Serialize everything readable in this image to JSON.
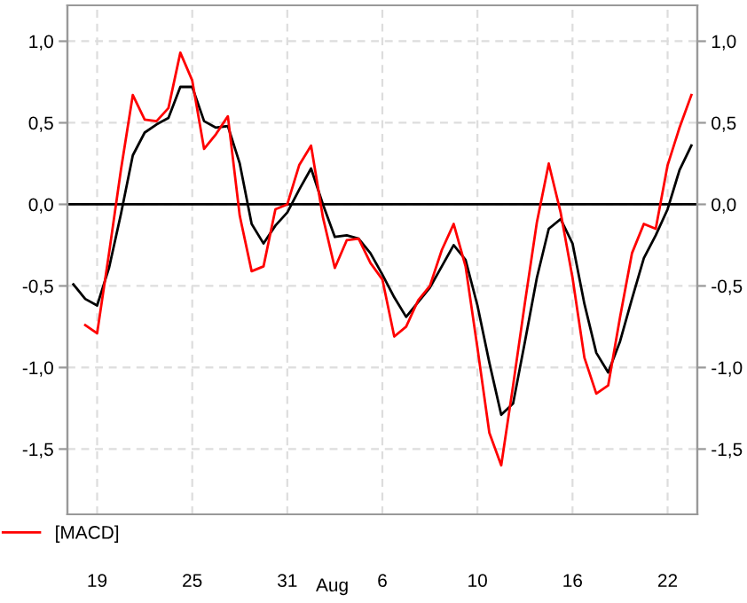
{
  "chart_data": {
    "type": "line",
    "xlabel": "Aug",
    "categories": [
      null,
      null,
      "19",
      null,
      null,
      null,
      null,
      null,
      null,
      null,
      "25",
      null,
      null,
      null,
      null,
      null,
      null,
      null,
      "31",
      null,
      null,
      null,
      null,
      null,
      null,
      null,
      "6",
      null,
      null,
      null,
      null,
      null,
      null,
      null,
      "10",
      null,
      null,
      null,
      null,
      null,
      null,
      null,
      "16",
      null,
      null,
      null,
      null,
      null,
      null,
      null,
      "22",
      null,
      null
    ],
    "ylim": [
      -1.9,
      1.22
    ],
    "y2lim": [
      -1.9,
      1.22
    ],
    "yticks": [
      {
        "value": -1.5,
        "label": "-1,5"
      },
      {
        "value": -1.0,
        "label": "-1,0"
      },
      {
        "value": -0.5,
        "label": "-0,5"
      },
      {
        "value": 0,
        "label": "0,0"
      },
      {
        "value": 0.5,
        "label": "0,5"
      },
      {
        "value": 1.0,
        "label": "1,0"
      }
    ],
    "y2ticks": [
      {
        "value": -1.5,
        "label": "-1,5"
      },
      {
        "value": -1.0,
        "label": "-1,0"
      },
      {
        "value": -0.5,
        "label": "-0,5"
      },
      {
        "value": 0,
        "label": "0,0"
      },
      {
        "value": 0.5,
        "label": "0,5"
      },
      {
        "value": 1.0,
        "label": "1,0"
      }
    ],
    "grid": true,
    "legend": "bottom left",
    "line_style": "solid",
    "ref_lines": [
      {
        "axis": "y",
        "value": 0,
        "color": "#000000"
      }
    ],
    "series": [
      {
        "color": "#000000",
        "values": [
          -0.49,
          -0.58,
          -0.62,
          -0.39,
          -0.06,
          0.3,
          0.44,
          0.49,
          0.53,
          0.72,
          0.72,
          0.51,
          0.47,
          0.48,
          0.25,
          -0.12,
          -0.24,
          -0.13,
          -0.05,
          0.09,
          0.22,
          0.0,
          -0.2,
          -0.19,
          -0.21,
          -0.3,
          -0.43,
          -0.57,
          -0.69,
          -0.6,
          -0.51,
          -0.38,
          -0.25,
          -0.34,
          -0.62,
          -0.97,
          -1.29,
          -1.22,
          -0.84,
          -0.45,
          -0.15,
          -0.09,
          -0.24,
          -0.61,
          -0.91,
          -1.03,
          -0.84,
          -0.58,
          -0.33,
          -0.19,
          -0.03,
          0.21,
          0.36
        ]
      },
      {
        "name": "[MACD]",
        "color": "#ff0000",
        "values": [
          null,
          -0.74,
          -0.79,
          -0.3,
          0.21,
          0.67,
          0.52,
          0.51,
          0.59,
          0.93,
          0.76,
          0.34,
          0.43,
          0.54,
          -0.07,
          -0.41,
          -0.38,
          -0.03,
          0.0,
          0.24,
          0.36,
          -0.08,
          -0.39,
          -0.22,
          -0.21,
          -0.36,
          -0.46,
          -0.81,
          -0.75,
          -0.59,
          -0.5,
          -0.28,
          -0.12,
          -0.38,
          -0.88,
          -1.4,
          -1.6,
          -1.11,
          -0.6,
          -0.11,
          0.25,
          -0.05,
          -0.45,
          -0.94,
          -1.16,
          -1.11,
          -0.69,
          -0.3,
          -0.12,
          -0.15,
          0.24,
          0.47,
          0.67
        ]
      }
    ]
  }
}
